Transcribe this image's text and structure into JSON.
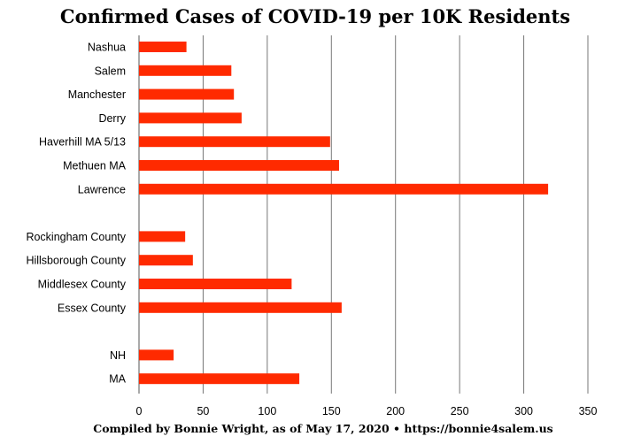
{
  "chart_data": {
    "type": "bar",
    "orientation": "horizontal",
    "title": "Confirmed Cases of COVID-19 per 10K Residents",
    "footer": "Compiled by Bonnie Wright, as of May 17, 2020 • https://bonnie4salem.us",
    "categories": [
      "Nashua",
      "Salem",
      "Manchester",
      "Derry",
      "Haverhill  MA 5/13",
      "Methuen MA",
      "Lawrence",
      "",
      "Rockingham County",
      "Hillsborough County",
      "Middlesex County",
      "Essex County",
      "",
      "NH",
      "MA"
    ],
    "values": [
      37,
      72,
      74,
      80,
      149,
      156,
      319,
      null,
      36,
      42,
      119,
      158,
      null,
      27,
      125
    ],
    "xlim": [
      0,
      350
    ],
    "xticks": [
      "0",
      "50",
      "100",
      "150",
      "200",
      "250",
      "300",
      "350"
    ],
    "xlabel": "",
    "ylabel": "",
    "grid": true,
    "bar_color": "#ff2a00"
  }
}
